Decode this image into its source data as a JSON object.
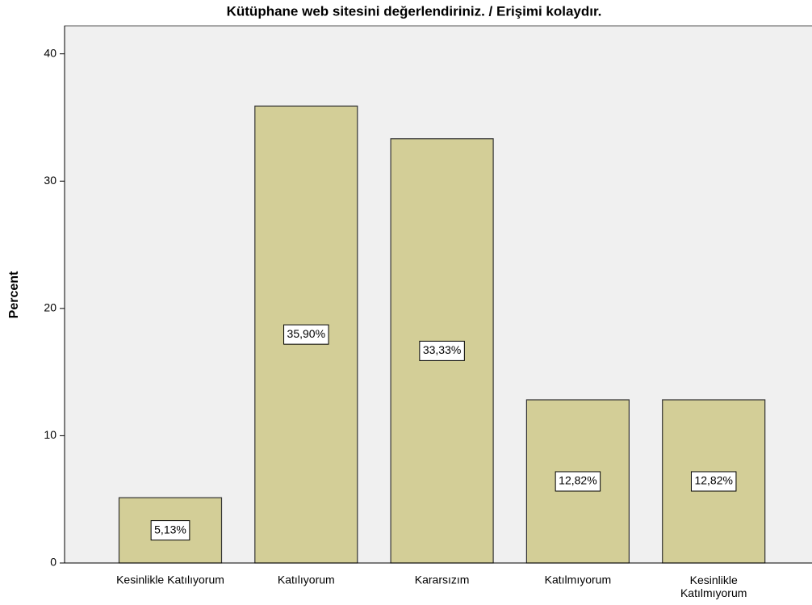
{
  "chart_data": {
    "type": "bar",
    "title": "Kütüphane web sitesini değerlendiriniz. / Erişimi kolaydır.",
    "ylabel": "Percent",
    "categories": [
      "Kesinlikle Katılıyorum",
      "Katılıyorum",
      "Kararsızım",
      "Katılmıyorum",
      "Kesinlikle Katılmıyorum"
    ],
    "values": [
      5.13,
      35.9,
      33.33,
      12.82,
      12.82
    ],
    "value_labels": [
      "5,13%",
      "35,90%",
      "33,33%",
      "12,82%",
      "12,82%"
    ],
    "color": "#d3ce97",
    "ylim": [
      0,
      42.2
    ],
    "yticks": [
      0,
      10,
      20,
      30,
      40
    ],
    "grid": false
  }
}
